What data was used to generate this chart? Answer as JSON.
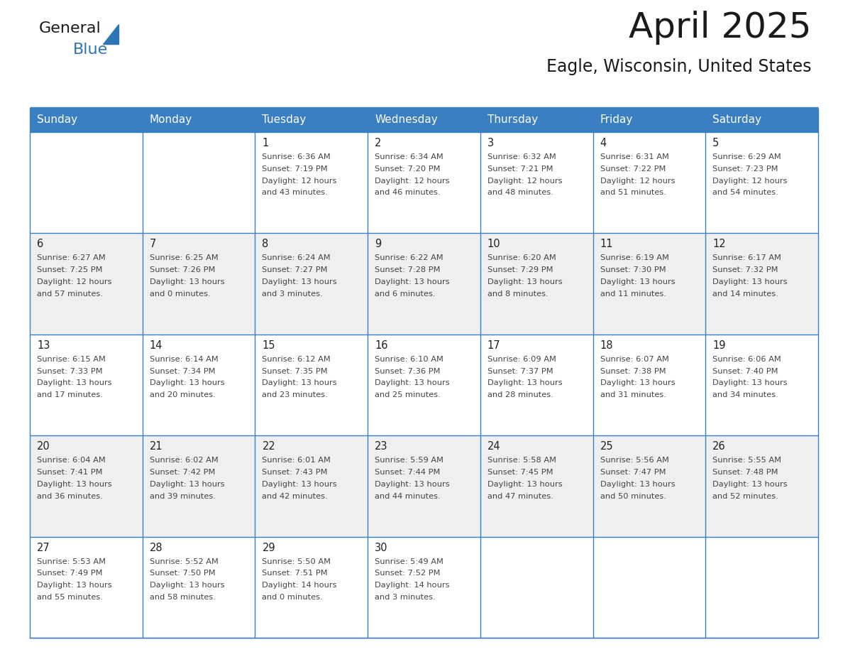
{
  "title": "April 2025",
  "subtitle": "Eagle, Wisconsin, United States",
  "header_bg_color": "#3A7FC1",
  "header_text_color": "#FFFFFF",
  "cell_bg_color_even": "#FFFFFF",
  "cell_bg_color_odd": "#EFEFEF",
  "day_number_color": "#222222",
  "cell_text_color": "#444444",
  "grid_line_color": "#3A7FC1",
  "days_of_week": [
    "Sunday",
    "Monday",
    "Tuesday",
    "Wednesday",
    "Thursday",
    "Friday",
    "Saturday"
  ],
  "calendar_data": [
    [
      {
        "day": null,
        "sunrise": null,
        "sunset": null,
        "daylight": null
      },
      {
        "day": null,
        "sunrise": null,
        "sunset": null,
        "daylight": null
      },
      {
        "day": 1,
        "sunrise": "6:36 AM",
        "sunset": "7:19 PM",
        "daylight": "12 hours\nand 43 minutes."
      },
      {
        "day": 2,
        "sunrise": "6:34 AM",
        "sunset": "7:20 PM",
        "daylight": "12 hours\nand 46 minutes."
      },
      {
        "day": 3,
        "sunrise": "6:32 AM",
        "sunset": "7:21 PM",
        "daylight": "12 hours\nand 48 minutes."
      },
      {
        "day": 4,
        "sunrise": "6:31 AM",
        "sunset": "7:22 PM",
        "daylight": "12 hours\nand 51 minutes."
      },
      {
        "day": 5,
        "sunrise": "6:29 AM",
        "sunset": "7:23 PM",
        "daylight": "12 hours\nand 54 minutes."
      }
    ],
    [
      {
        "day": 6,
        "sunrise": "6:27 AM",
        "sunset": "7:25 PM",
        "daylight": "12 hours\nand 57 minutes."
      },
      {
        "day": 7,
        "sunrise": "6:25 AM",
        "sunset": "7:26 PM",
        "daylight": "13 hours\nand 0 minutes."
      },
      {
        "day": 8,
        "sunrise": "6:24 AM",
        "sunset": "7:27 PM",
        "daylight": "13 hours\nand 3 minutes."
      },
      {
        "day": 9,
        "sunrise": "6:22 AM",
        "sunset": "7:28 PM",
        "daylight": "13 hours\nand 6 minutes."
      },
      {
        "day": 10,
        "sunrise": "6:20 AM",
        "sunset": "7:29 PM",
        "daylight": "13 hours\nand 8 minutes."
      },
      {
        "day": 11,
        "sunrise": "6:19 AM",
        "sunset": "7:30 PM",
        "daylight": "13 hours\nand 11 minutes."
      },
      {
        "day": 12,
        "sunrise": "6:17 AM",
        "sunset": "7:32 PM",
        "daylight": "13 hours\nand 14 minutes."
      }
    ],
    [
      {
        "day": 13,
        "sunrise": "6:15 AM",
        "sunset": "7:33 PM",
        "daylight": "13 hours\nand 17 minutes."
      },
      {
        "day": 14,
        "sunrise": "6:14 AM",
        "sunset": "7:34 PM",
        "daylight": "13 hours\nand 20 minutes."
      },
      {
        "day": 15,
        "sunrise": "6:12 AM",
        "sunset": "7:35 PM",
        "daylight": "13 hours\nand 23 minutes."
      },
      {
        "day": 16,
        "sunrise": "6:10 AM",
        "sunset": "7:36 PM",
        "daylight": "13 hours\nand 25 minutes."
      },
      {
        "day": 17,
        "sunrise": "6:09 AM",
        "sunset": "7:37 PM",
        "daylight": "13 hours\nand 28 minutes."
      },
      {
        "day": 18,
        "sunrise": "6:07 AM",
        "sunset": "7:38 PM",
        "daylight": "13 hours\nand 31 minutes."
      },
      {
        "day": 19,
        "sunrise": "6:06 AM",
        "sunset": "7:40 PM",
        "daylight": "13 hours\nand 34 minutes."
      }
    ],
    [
      {
        "day": 20,
        "sunrise": "6:04 AM",
        "sunset": "7:41 PM",
        "daylight": "13 hours\nand 36 minutes."
      },
      {
        "day": 21,
        "sunrise": "6:02 AM",
        "sunset": "7:42 PM",
        "daylight": "13 hours\nand 39 minutes."
      },
      {
        "day": 22,
        "sunrise": "6:01 AM",
        "sunset": "7:43 PM",
        "daylight": "13 hours\nand 42 minutes."
      },
      {
        "day": 23,
        "sunrise": "5:59 AM",
        "sunset": "7:44 PM",
        "daylight": "13 hours\nand 44 minutes."
      },
      {
        "day": 24,
        "sunrise": "5:58 AM",
        "sunset": "7:45 PM",
        "daylight": "13 hours\nand 47 minutes."
      },
      {
        "day": 25,
        "sunrise": "5:56 AM",
        "sunset": "7:47 PM",
        "daylight": "13 hours\nand 50 minutes."
      },
      {
        "day": 26,
        "sunrise": "5:55 AM",
        "sunset": "7:48 PM",
        "daylight": "13 hours\nand 52 minutes."
      }
    ],
    [
      {
        "day": 27,
        "sunrise": "5:53 AM",
        "sunset": "7:49 PM",
        "daylight": "13 hours\nand 55 minutes."
      },
      {
        "day": 28,
        "sunrise": "5:52 AM",
        "sunset": "7:50 PM",
        "daylight": "13 hours\nand 58 minutes."
      },
      {
        "day": 29,
        "sunrise": "5:50 AM",
        "sunset": "7:51 PM",
        "daylight": "14 hours\nand 0 minutes."
      },
      {
        "day": 30,
        "sunrise": "5:49 AM",
        "sunset": "7:52 PM",
        "daylight": "14 hours\nand 3 minutes."
      },
      {
        "day": null,
        "sunrise": null,
        "sunset": null,
        "daylight": null
      },
      {
        "day": null,
        "sunrise": null,
        "sunset": null,
        "daylight": null
      },
      {
        "day": null,
        "sunrise": null,
        "sunset": null,
        "daylight": null
      }
    ]
  ],
  "logo_general_color": "#1a1a1a",
  "logo_blue_color": "#2E75B6",
  "logo_triangle_color": "#2E75B6"
}
